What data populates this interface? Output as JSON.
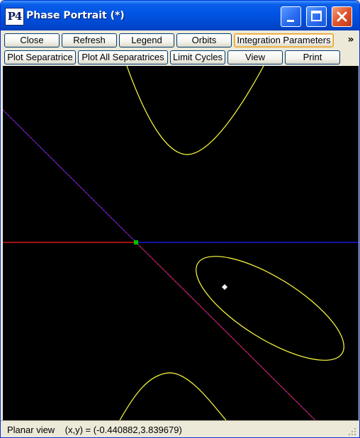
{
  "window": {
    "title": "Phase Portrait (*)",
    "icon_text": "P4",
    "controls": [
      "minimize-icon",
      "maximize-icon",
      "close-icon"
    ]
  },
  "toolbar_row1": {
    "close": "Close",
    "refresh": "Refresh",
    "legend": "Legend",
    "orbits": "Orbits",
    "integration_parameters": "Integration Parameters",
    "more": "»"
  },
  "toolbar_row2": {
    "plot_separatrice": "Plot Separatrice",
    "plot_all_separatrices": "Plot All Separatrices",
    "limit_cycles": "Limit Cycles",
    "view": "View",
    "print": "Print"
  },
  "status": {
    "view_mode": "Planar view",
    "coords_label": "(x,y) =",
    "coords_value": "(-0.440882,3.839679)"
  },
  "colors": {
    "canvas_bg": "#000000",
    "orbit": "#ffff40",
    "stable_separatrix": "#ff2020",
    "unstable_separatrix": "#2020ff",
    "saddle_point": "#00c000",
    "critical_point": "#ffffff"
  }
}
